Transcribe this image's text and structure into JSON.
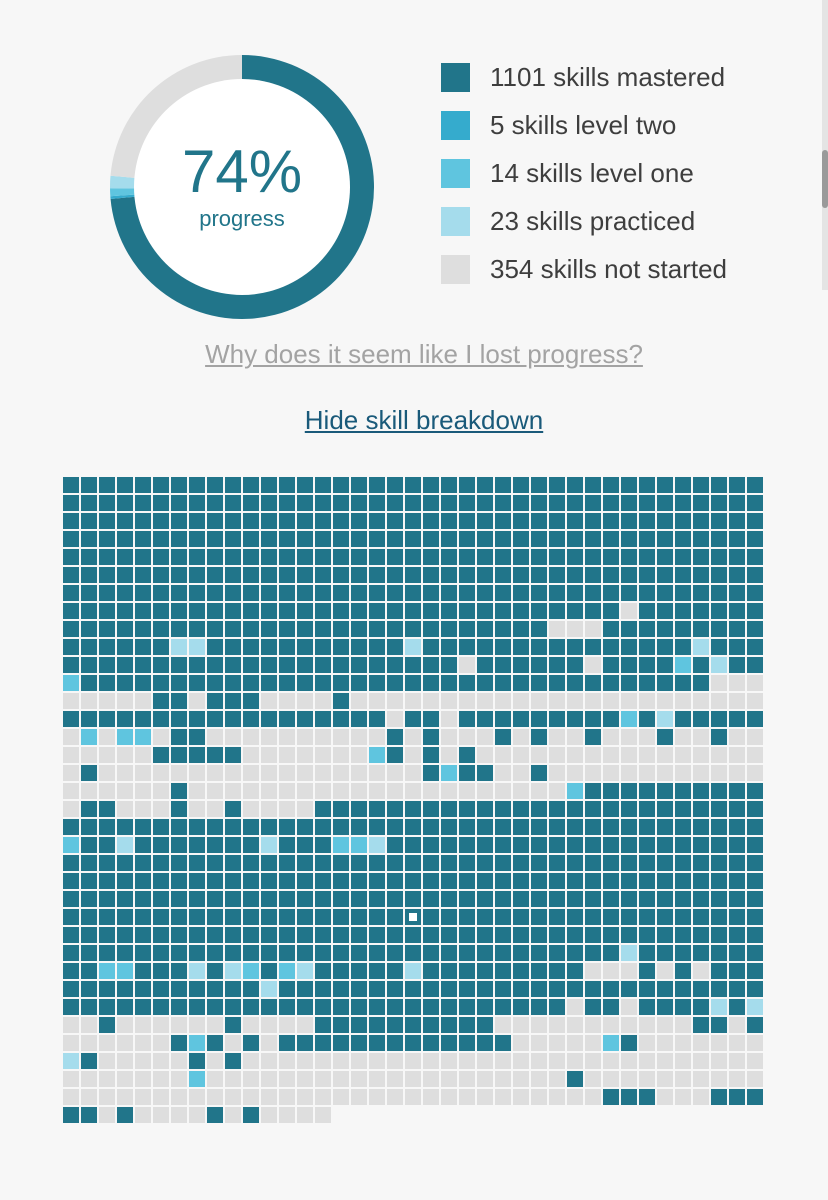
{
  "progress": {
    "percent": 74,
    "percent_label": "74%",
    "sub_label": "progress"
  },
  "legend": [
    {
      "label": "1101 skills mastered",
      "count": 1101,
      "color": "#21758a"
    },
    {
      "label": "5 skills level two",
      "count": 5,
      "color": "#35abcd"
    },
    {
      "label": "14 skills level one",
      "count": 14,
      "color": "#5fc5df"
    },
    {
      "label": "23 skills practiced",
      "count": 23,
      "color": "#a5dcec"
    },
    {
      "label": "354 skills not started",
      "count": 354,
      "color": "#dedede"
    }
  ],
  "links": {
    "lost_progress": "Why does it seem like I lost progress?",
    "hide_breakdown": "Hide skill breakdown"
  },
  "skill_grid": {
    "legend_key": "M = mastered, T = level two, O = level one, P = practiced, N = not started, S = selected, - = empty",
    "rows": [
      "MMMMMMMMMMMMMMMMMMMMMMMMMMMMMMMMMMMMMMM",
      "MMMMMMMMMMMMMMMMMMMMMMMMMMMMMMMMMMMMMMM",
      "MMMMMMMMMMMMMMMMMMMMMMMMMMMMMMMMMMMMMMM",
      "MMMMMMMMMMMMMMMMMMMMMMMMMMMMMMMMMMMMMMM",
      "MMMMMMMMMMMMMMMMMMMMMMMMMMMMMMMMMMMMMMM",
      "MMMMMMMMMMMMMMMMMMMMMMMMMMMMMMMMMMMMMMM",
      "MMMMMMMMMMMMMMMMMMMMMMMMMMMMMMMMMMMMMMM",
      "MMMMMMMMMMMMMMMMMMMMMMMMMMMMMMMNMMMMMMM",
      "MMMMMMMMMMMMMMMMMMMMMMMMMMMNNNMMMMMMMMMMM",
      "MMMMMMPPMMMMMMMMMMMPMMMMMMMMMMMMMMMPMMMMMMM",
      "MMMMMMMMMMMMMMMMMMMMMMNMMMMMMNMMMMOMPMMPMMMPP",
      "OMMMMMMMMMMMMMMMMMMMMMMMMMMMMMMMMMMMNNNNNNN",
      "NNNNNMMNMMMNNNNMNNNNNNNNNNNNNNNNNNNNNNNNM",
      "MMMMMMMMMMMMMMMMMMNMMNMMMMMMMMMOMPMMMMMMMMN",
      "NONOONMMNNNNNNNNNNMNMNNNMNMNNMNNNMNNMNNNNNMNN",
      "NNNNNMMMMMNNNNNNNOMNMNMNNNNNNNNNNNNNNNNNNN",
      "NMNNNNNNNNNNNNNNNNNNMOMMNNMNNNNNNNNNNNNNN",
      "NNNNNNMNNNNNNNNNNNNNNNNNNNNNOMMMMMMMMMMMNP",
      "NMMNNNMNNMNNNNMMMMMMMMMMMMMMMMMMMMMMMMMMM",
      "MMMMMMMMMMMMMMMMMMMMMMMMMMMMMMMMMMMMMMM",
      "OMMPMMMMMMMPMMMOOPMMMMMMMMMMMMMMMMMMMMM",
      "MMMMMMMMMMMMMMMMMMMMMMMMMMMMMMMMMMMMMMM",
      "MMMMMMMMMMMMMMMMMMMMMMMMMMMMMMMMMMMMMMM",
      "MMMMMMMMMMMMMMMMMMMMMMMMMMMMMMMMMMMMMMM",
      "MMMMMMMMMMMMMMMMMMMSMMMMMMMMMMMMMMMMMMM",
      "MMMMMMMMMMMMMMMMMMMMMMMMMMMMMMMMMMMMMMM",
      "MMMMMMMMMMMMMMMMMMMMMMMMMMMMMMMPMMMMMMM",
      "MMOOMMMPMPOMOPMMMMMPMMMMMMMMMNNNMNMNMMM",
      "MMMMMMMMMMMPMMMMMMMMMMMMMMMMMMMMMMMMMMM",
      "MMMMMMMMMMMMMMMMMMMMMMMMMMMMNMMNMMMMPMPPN",
      "NNMNNNNNNMNNNNMMMMMMMMMMNNNNNNNNNNNMMNM",
      "NNNNNNMOMNMNMMMMMMMMMMMMMNNNNNOMNNNNNNN",
      "PMNNNNNMNMNNNNNNNNNNNNNNNNNNNNNNNNNNNNN",
      "NNNNNNNONNNNNNNNNNNNNNNNNNNNMNNNNNNNNNN",
      "NNNNNNNNNNNNNNNNNNNNNNNNNNNNNNMMMNNNMMMMM",
      "MMNMNNNNMNMNNNN-------------------------"
    ]
  }
}
